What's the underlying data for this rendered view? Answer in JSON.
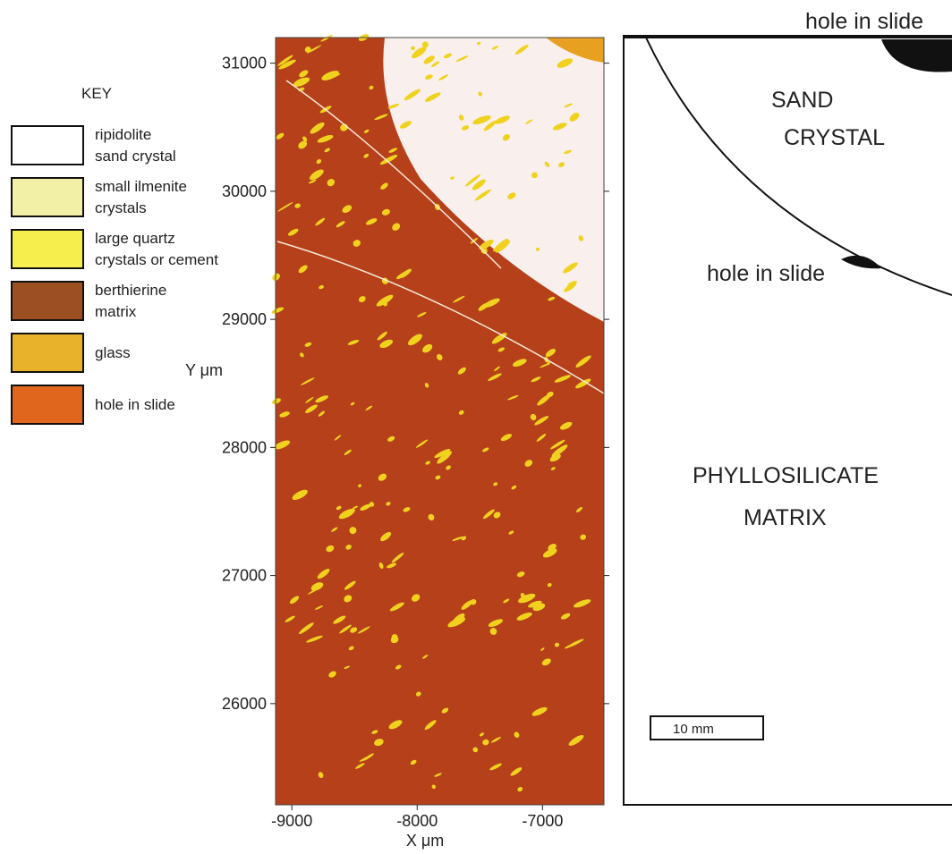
{
  "key": {
    "title": "KEY",
    "items": [
      {
        "lines": [
          "ripidolite",
          "sand crystal"
        ],
        "color": "#ffffff"
      },
      {
        "lines": [
          "small ilmenite",
          "crystals"
        ],
        "color": "#f2f0a6"
      },
      {
        "lines": [
          "large quartz",
          "crystals or cement"
        ],
        "color": "#f6ee4c"
      },
      {
        "lines": [
          "berthierine",
          "matrix"
        ],
        "color": "#9c4f22"
      },
      {
        "lines": [
          "glass"
        ],
        "color": "#e8b22a"
      },
      {
        "lines": [
          "hole in slide"
        ],
        "color": "#e0661e"
      }
    ]
  },
  "map": {
    "xlabel": "X μm",
    "ylabel": "Y μm",
    "xlim": [
      -9130,
      -6510
    ],
    "ylim": [
      25210,
      31200
    ],
    "xticks": [
      -9000,
      -8000,
      -7000
    ],
    "yticks": [
      26000,
      27000,
      28000,
      29000,
      30000,
      31000
    ],
    "matrix_color": "#b5401a",
    "grain_color": "#f0d21e"
  },
  "schematic": {
    "labels": [
      "hole in slide",
      "SAND",
      "CRYSTAL",
      "hole in slide",
      "PHYLLOSILICATE",
      "MATRIX"
    ],
    "scale_bar": "10 mm"
  }
}
